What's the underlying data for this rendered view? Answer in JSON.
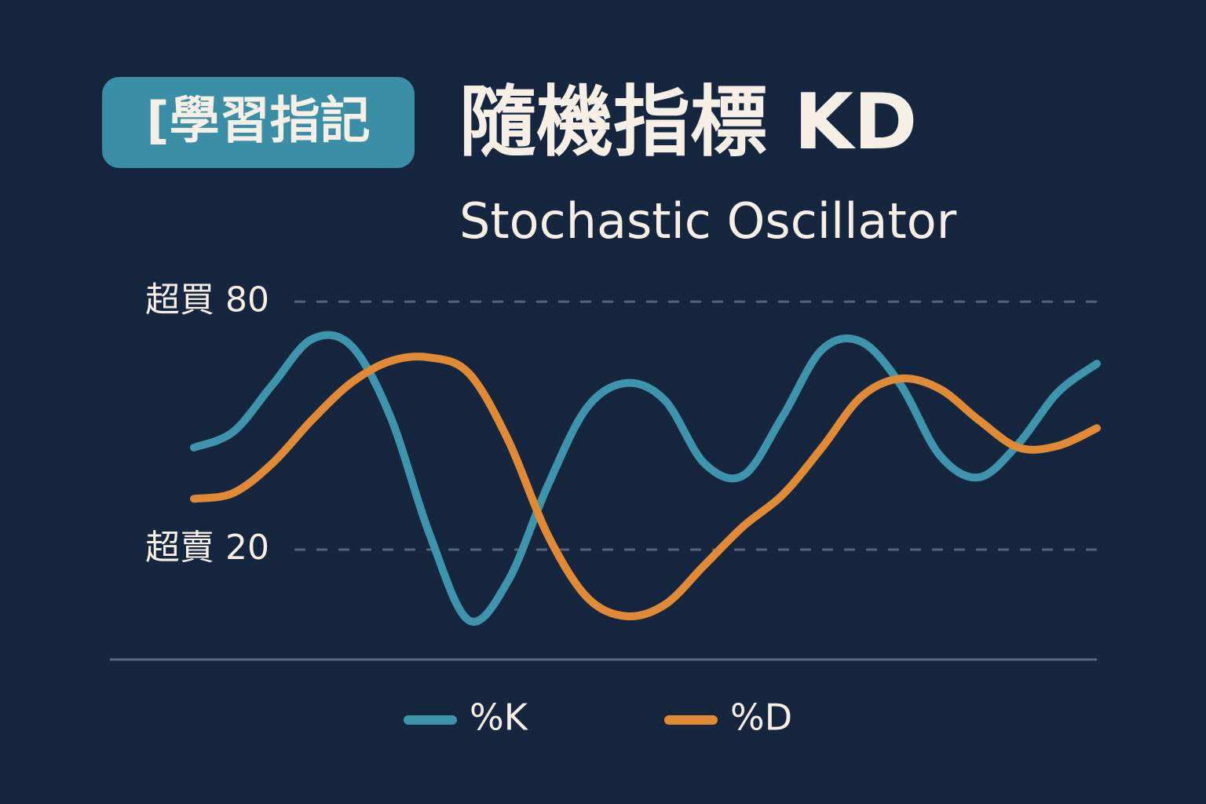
{
  "chart_data": {
    "type": "line",
    "badge": "[學習指記",
    "title": "隨機指標 KD",
    "subtitle": "Stochastic Oscillator",
    "series": [
      {
        "name": "%K",
        "color": "#3d94ab",
        "values": [
          44.7,
          48.5,
          59.9,
          70.9,
          69.4,
          52.3,
          23.8,
          2.9,
          12.4,
          35.2,
          54.2,
          60.3,
          56.1,
          40.9,
          38.0,
          52.3,
          68.4,
          70.3,
          59.9,
          42.8,
          37.5,
          45.6,
          58.0,
          65.0
        ]
      },
      {
        "name": "%D",
        "color": "#e08a35",
        "values": [
          32.3,
          33.7,
          40.9,
          51.3,
          60.3,
          65.6,
          66.5,
          62.7,
          46.6,
          23.8,
          8.6,
          3.9,
          6.7,
          16.2,
          25.7,
          33.3,
          44.7,
          57.0,
          61.4,
          58.9,
          51.3,
          44.7,
          45.1,
          49.4
        ]
      }
    ],
    "ylim": [
      -6.6,
      100
    ],
    "yticks": [
      {
        "value": 80,
        "label": "超買 80"
      },
      {
        "value": 20,
        "label": "超賣 20"
      }
    ],
    "grid": true,
    "legend": "bottom"
  }
}
